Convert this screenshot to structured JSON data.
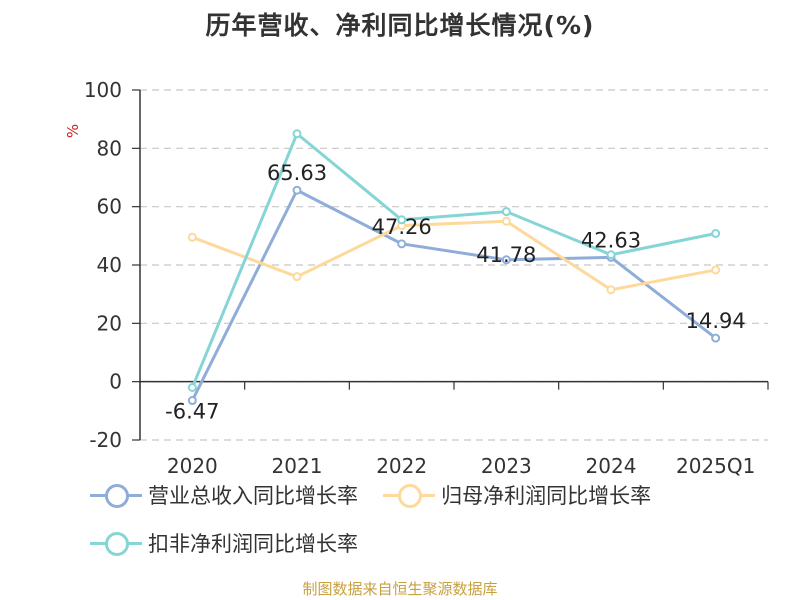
{
  "chart_data": {
    "type": "line",
    "title": "历年营收、净利同比增长情况(%)",
    "ylabel": "%",
    "categories": [
      "2020",
      "2021",
      "2022",
      "2023",
      "2024",
      "2025Q1"
    ],
    "ylim": [
      -20,
      100
    ],
    "yticks": [
      -20,
      0,
      20,
      40,
      60,
      80,
      100
    ],
    "grid": true,
    "legend_position": "bottom",
    "series": [
      {
        "name": "营业总收入同比增长率",
        "color": "#8fadd8",
        "values": [
          -6.47,
          65.63,
          47.26,
          41.78,
          42.63,
          14.94
        ],
        "data_labels": [
          "-6.47",
          "65.63",
          "47.26",
          "41.78",
          "42.63",
          "14.94"
        ]
      },
      {
        "name": "归母净利润同比增长率",
        "color": "#fdd99b",
        "values": [
          49.5,
          36.0,
          53.5,
          55.0,
          31.5,
          38.3
        ]
      },
      {
        "name": "扣非净利润同比增长率",
        "color": "#86d5d6",
        "values": [
          -2.0,
          85.0,
          55.5,
          58.3,
          43.5,
          50.8
        ]
      }
    ]
  },
  "footer": {
    "source": "制图数据来自恒生聚源数据库"
  }
}
